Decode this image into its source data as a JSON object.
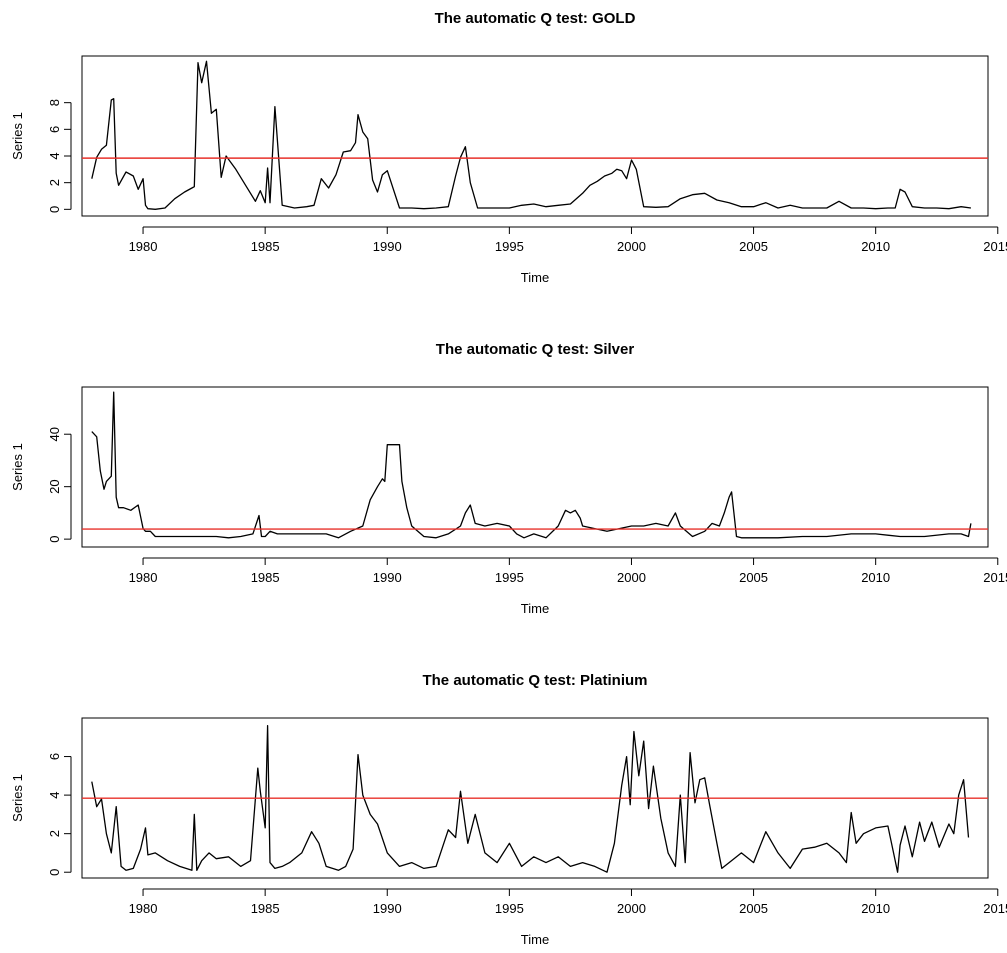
{
  "chart_data": [
    {
      "type": "line",
      "title": "The automatic Q test: GOLD",
      "xlabel": "Time",
      "ylabel": "Series 1",
      "xlim": [
        1977.5,
        2014.6
      ],
      "ylim": [
        -0.5,
        11.5
      ],
      "xticks": [
        1980,
        1985,
        1990,
        1995,
        2000,
        2005,
        2010,
        2015
      ],
      "xtick_labels": [
        "1980",
        "1985",
        "1990",
        "1995",
        "2000",
        "2005",
        "2010",
        "2015"
      ],
      "yticks": [
        0,
        2,
        4,
        6,
        8
      ],
      "ytick_labels": [
        "0",
        "2",
        "4",
        "6",
        "8"
      ],
      "threshold": 3.84,
      "threshold_color": "#e8302a",
      "line_color": "#000000",
      "grid": false,
      "series": [
        {
          "x": [
            1977.9,
            1978.1,
            1978.3,
            1978.5,
            1978.7,
            1978.8,
            1978.9,
            1979.0,
            1979.3,
            1979.6,
            1979.8,
            1980.0,
            1980.1,
            1980.2,
            1980.5,
            1980.9,
            1981.3,
            1981.7,
            1982.0,
            1982.1,
            1982.25,
            1982.4,
            1982.6,
            1982.8,
            1983.0,
            1983.2,
            1983.4,
            1983.8,
            1984.2,
            1984.6,
            1984.8,
            1985.0,
            1985.1,
            1985.2,
            1985.4,
            1985.7,
            1986.2,
            1986.7,
            1987.0,
            1987.3,
            1987.6,
            1987.9,
            1988.2,
            1988.5,
            1988.7,
            1988.8,
            1989.0,
            1989.2,
            1989.4,
            1989.6,
            1989.8,
            1990.0,
            1990.5,
            1991.0,
            1991.5,
            1992.0,
            1992.5,
            1992.8,
            1993.0,
            1993.2,
            1993.4,
            1993.7,
            1994.5,
            1995.0,
            1995.5,
            1996.0,
            1996.5,
            1997.0,
            1997.5,
            1998.0,
            1998.3,
            1998.6,
            1998.9,
            1999.2,
            1999.4,
            1999.6,
            1999.8,
            2000.0,
            2000.2,
            2000.5,
            2001.0,
            2001.5,
            2002.0,
            2002.5,
            2003.0,
            2003.5,
            2004.0,
            2004.5,
            2005.0,
            2005.5,
            2006.0,
            2006.5,
            2007.0,
            2007.5,
            2008.0,
            2008.5,
            2009.0,
            2009.5,
            2010.0,
            2010.5,
            2010.8,
            2011.0,
            2011.2,
            2011.5,
            2012.0,
            2012.5,
            2013.0,
            2013.5,
            2013.9
          ],
          "y": [
            2.3,
            3.9,
            4.5,
            4.8,
            8.2,
            8.3,
            2.7,
            1.8,
            2.8,
            2.5,
            1.5,
            2.3,
            0.3,
            0.05,
            0.0,
            0.1,
            0.8,
            1.3,
            1.6,
            1.7,
            11.0,
            9.5,
            11.1,
            7.2,
            7.5,
            2.4,
            4.0,
            3.0,
            1.8,
            0.6,
            1.4,
            0.5,
            3.1,
            0.5,
            7.7,
            0.3,
            0.1,
            0.2,
            0.3,
            2.3,
            1.6,
            2.6,
            4.3,
            4.4,
            5.0,
            7.1,
            5.8,
            5.3,
            2.2,
            1.3,
            2.6,
            2.9,
            0.1,
            0.1,
            0.05,
            0.1,
            0.2,
            2.5,
            3.9,
            4.7,
            2.0,
            0.1,
            0.1,
            0.1,
            0.3,
            0.4,
            0.2,
            0.3,
            0.4,
            1.2,
            1.8,
            2.1,
            2.5,
            2.7,
            3.0,
            2.9,
            2.3,
            3.7,
            3.0,
            0.2,
            0.15,
            0.2,
            0.8,
            1.1,
            1.2,
            0.7,
            0.5,
            0.2,
            0.2,
            0.5,
            0.1,
            0.3,
            0.1,
            0.1,
            0.1,
            0.6,
            0.1,
            0.1,
            0.05,
            0.1,
            0.1,
            1.5,
            1.3,
            0.2,
            0.1,
            0.1,
            0.05,
            0.2,
            0.1
          ]
        }
      ]
    },
    {
      "type": "line",
      "title": "The automatic Q test: Silver",
      "xlabel": "Time",
      "ylabel": "Series 1",
      "xlim": [
        1977.5,
        2014.6
      ],
      "ylim": [
        -3,
        58
      ],
      "xticks": [
        1980,
        1985,
        1990,
        1995,
        2000,
        2005,
        2010,
        2015
      ],
      "xtick_labels": [
        "1980",
        "1985",
        "1990",
        "1995",
        "2000",
        "2005",
        "2010",
        "2015"
      ],
      "yticks": [
        0,
        20,
        40
      ],
      "ytick_labels": [
        "0",
        "20",
        "40"
      ],
      "threshold": 3.84,
      "threshold_color": "#e8302a",
      "line_color": "#000000",
      "grid": false,
      "series": [
        {
          "x": [
            1977.9,
            1978.1,
            1978.25,
            1978.4,
            1978.5,
            1978.7,
            1978.8,
            1978.9,
            1979.0,
            1979.2,
            1979.5,
            1979.8,
            1980.0,
            1980.1,
            1980.3,
            1980.5,
            1981.0,
            1981.5,
            1982.0,
            1982.3,
            1983.0,
            1983.5,
            1984.0,
            1984.5,
            1984.75,
            1984.85,
            1985.0,
            1985.2,
            1985.5,
            1986.0,
            1987.0,
            1987.5,
            1988.0,
            1988.5,
            1989.0,
            1989.3,
            1989.6,
            1989.8,
            1989.9,
            1990.0,
            1990.2,
            1990.5,
            1990.6,
            1990.8,
            1991.0,
            1991.5,
            1992.0,
            1992.5,
            1993.0,
            1993.2,
            1993.4,
            1993.6,
            1994.0,
            1994.5,
            1995.0,
            1995.3,
            1995.6,
            1996.0,
            1996.5,
            1997.0,
            1997.3,
            1997.5,
            1997.7,
            1997.9,
            1998.0,
            1998.5,
            1999.0,
            1999.5,
            2000.0,
            2000.5,
            2001.0,
            2001.5,
            2001.8,
            2002.0,
            2002.5,
            2003.0,
            2003.3,
            2003.6,
            2003.8,
            2004.0,
            2004.1,
            2004.3,
            2004.5,
            2005.0,
            2006.0,
            2007.0,
            2008.0,
            2009.0,
            2010.0,
            2011.0,
            2012.0,
            2013.0,
            2013.5,
            2013.8,
            2013.9
          ],
          "y": [
            41,
            39,
            26,
            19,
            22,
            24,
            56,
            16,
            12,
            12,
            11,
            13,
            4,
            3,
            3,
            1,
            1,
            1,
            1,
            1,
            1,
            0.5,
            1,
            2,
            9,
            1,
            1,
            3,
            2,
            2,
            2,
            2,
            0.5,
            3,
            5,
            15,
            20,
            23,
            22,
            36,
            36,
            36,
            22,
            12,
            5,
            1,
            0.5,
            2,
            5,
            10,
            13,
            6,
            5,
            6,
            5,
            2,
            0.5,
            2,
            0.5,
            5,
            11,
            10,
            11,
            8,
            5,
            4,
            3,
            4,
            5,
            5,
            6,
            5,
            10,
            5,
            1,
            3,
            6,
            5,
            10,
            16,
            18,
            1,
            0.5,
            0.5,
            0.5,
            1,
            1,
            2,
            2,
            1,
            1,
            2,
            2,
            1,
            6
          ]
        }
      ]
    },
    {
      "type": "line",
      "title": "The automatic Q test: Platinium",
      "xlabel": "Time",
      "ylabel": "Series 1",
      "xlim": [
        1977.5,
        2014.6
      ],
      "ylim": [
        -0.3,
        8.0
      ],
      "xticks": [
        1980,
        1985,
        1990,
        1995,
        2000,
        2005,
        2010,
        2015
      ],
      "xtick_labels": [
        "1980",
        "1985",
        "1990",
        "1995",
        "2000",
        "2005",
        "2010",
        "2015"
      ],
      "yticks": [
        0,
        2,
        4,
        6
      ],
      "ytick_labels": [
        "0",
        "2",
        "4",
        "6"
      ],
      "threshold": 3.84,
      "threshold_color": "#e8302a",
      "line_color": "#000000",
      "grid": false,
      "series": [
        {
          "x": [
            1977.9,
            1978.1,
            1978.3,
            1978.5,
            1978.7,
            1978.9,
            1979.1,
            1979.3,
            1979.6,
            1979.9,
            1980.1,
            1980.2,
            1980.5,
            1981.0,
            1981.5,
            1982.0,
            1982.1,
            1982.2,
            1982.4,
            1982.7,
            1983.0,
            1983.5,
            1984.0,
            1984.4,
            1984.7,
            1984.8,
            1985.0,
            1985.1,
            1985.2,
            1985.4,
            1985.7,
            1986.0,
            1986.5,
            1986.9,
            1987.2,
            1987.5,
            1988.0,
            1988.3,
            1988.6,
            1988.8,
            1989.0,
            1989.3,
            1989.6,
            1990.0,
            1990.5,
            1991.0,
            1991.5,
            1992.0,
            1992.5,
            1992.8,
            1993.0,
            1993.3,
            1993.6,
            1994.0,
            1994.5,
            1995.0,
            1995.5,
            1996.0,
            1996.5,
            1997.0,
            1997.5,
            1998.0,
            1998.5,
            1999.0,
            1999.3,
            1999.6,
            1999.8,
            1999.95,
            2000.1,
            2000.3,
            2000.5,
            2000.7,
            2000.9,
            2001.2,
            2001.5,
            2001.8,
            2002.0,
            2002.2,
            2002.4,
            2002.6,
            2002.8,
            2003.0,
            2003.2,
            2003.5,
            2003.7,
            2004.0,
            2004.5,
            2005.0,
            2005.5,
            2006.0,
            2006.5,
            2007.0,
            2007.5,
            2008.0,
            2008.5,
            2008.8,
            2009.0,
            2009.2,
            2009.5,
            2010.0,
            2010.5,
            2010.8,
            2010.9,
            2011.0,
            2011.2,
            2011.5,
            2011.8,
            2012.0,
            2012.3,
            2012.6,
            2013.0,
            2013.2,
            2013.4,
            2013.6,
            2013.8
          ],
          "y": [
            4.7,
            3.4,
            3.8,
            2.0,
            1.0,
            3.4,
            0.3,
            0.1,
            0.2,
            1.2,
            2.3,
            0.9,
            1.0,
            0.6,
            0.3,
            0.1,
            3.0,
            0.1,
            0.6,
            1.0,
            0.7,
            0.8,
            0.3,
            0.6,
            5.4,
            4.2,
            2.3,
            7.6,
            0.5,
            0.2,
            0.3,
            0.5,
            1.0,
            2.1,
            1.5,
            0.3,
            0.1,
            0.3,
            1.2,
            6.1,
            4.0,
            3.0,
            2.5,
            1.0,
            0.3,
            0.5,
            0.2,
            0.3,
            2.2,
            1.8,
            4.2,
            1.5,
            3.0,
            1.0,
            0.5,
            1.5,
            0.3,
            0.8,
            0.5,
            0.8,
            0.3,
            0.5,
            0.3,
            0.0,
            1.5,
            4.5,
            6.0,
            3.5,
            7.3,
            5.0,
            6.8,
            3.3,
            5.5,
            2.8,
            1.0,
            0.3,
            4.0,
            0.5,
            6.2,
            3.6,
            4.8,
            4.9,
            3.5,
            1.5,
            0.2,
            0.5,
            1.0,
            0.5,
            2.1,
            1.0,
            0.2,
            1.2,
            1.3,
            1.5,
            1.0,
            0.5,
            3.1,
            1.5,
            2.0,
            2.3,
            2.4,
            0.6,
            0.0,
            1.4,
            2.4,
            0.8,
            2.6,
            1.6,
            2.6,
            1.3,
            2.5,
            2.0,
            4.0,
            4.8,
            1.8
          ]
        }
      ]
    }
  ]
}
